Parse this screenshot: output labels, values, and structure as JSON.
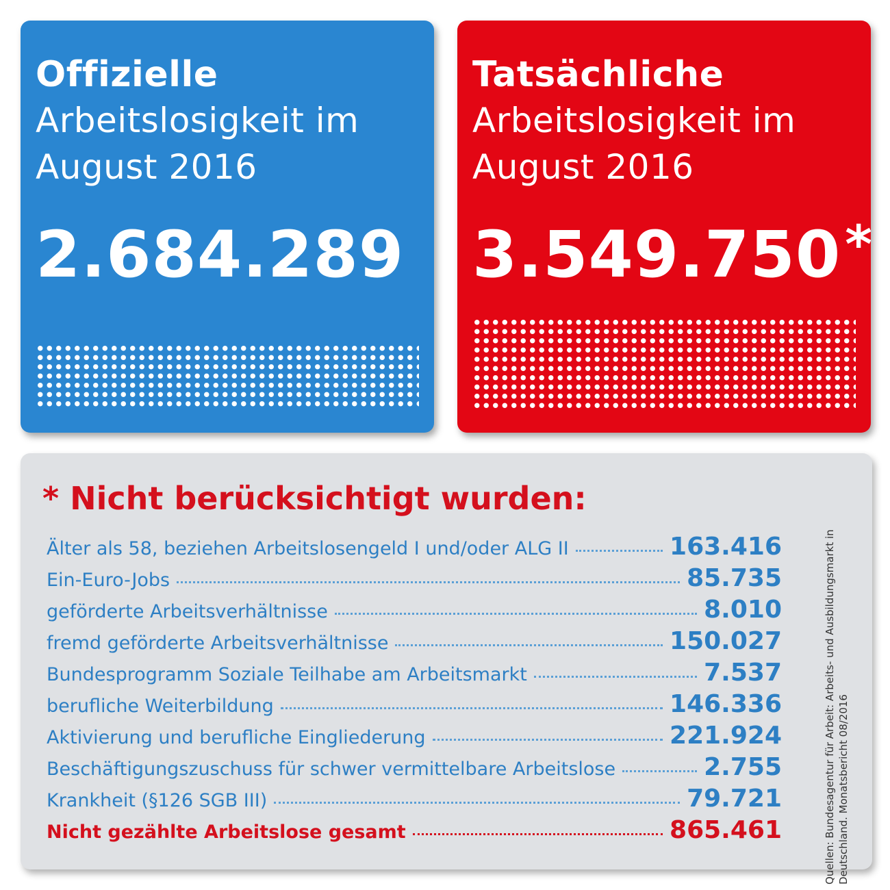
{
  "official": {
    "heading": "Offizielle",
    "subheading": "Arbeitslosigkeit im August 2016",
    "value": "2.684.289",
    "color": "#2a86d1"
  },
  "actual": {
    "heading": "Tatsächliche",
    "subheading": "Arbeitslosigkeit im August 2016",
    "value": "3.549.750",
    "asterisk": "*",
    "color": "#e30614"
  },
  "not_counted": {
    "title": "* Nicht berücksichtigt wurden:",
    "rows": [
      {
        "label": "Älter als 58, beziehen Arbeitslosengeld I und/oder ALG II",
        "value": "163.416"
      },
      {
        "label": "Ein-Euro-Jobs",
        "value": "85.735"
      },
      {
        "label": "geförderte Arbeitsverhältnisse",
        "value": "8.010"
      },
      {
        "label": "fremd geförderte Arbeitsverhältnisse",
        "value": "150.027"
      },
      {
        "label": "Bundesprogramm Soziale Teilhabe am Arbeitsmarkt",
        "value": "7.537"
      },
      {
        "label": "berufliche Weiterbildung",
        "value": "146.336"
      },
      {
        "label": "Aktivierung und berufliche Eingliederung",
        "value": "221.924"
      },
      {
        "label": "Beschäftigungszuschuss für schwer vermittelbare Arbeitslose",
        "value": "2.755"
      },
      {
        "label": "Krankheit (§126 SGB III)",
        "value": "79.721"
      }
    ],
    "total": {
      "label": "Nicht gezählte Arbeitslose gesamt",
      "value": "865.461"
    },
    "source": "Quellen: Bundesagentur für Arbeit: Arbeits- und Ausbildungsmarkt in Deutschland. Monatsbericht 08/2016"
  }
}
